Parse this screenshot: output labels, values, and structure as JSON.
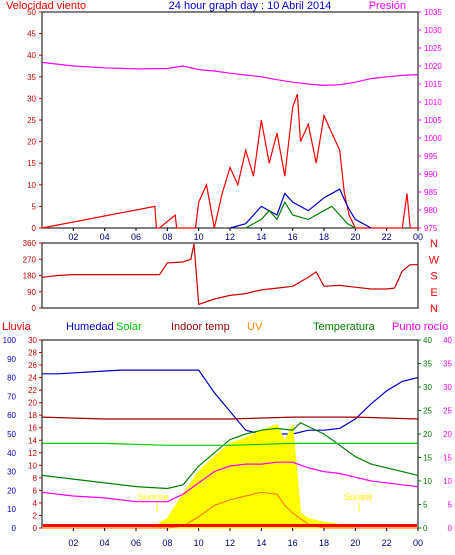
{
  "header": {
    "left_label": "Velocidad viento",
    "title": "24 hour graph day : 10 Abril 2014",
    "right_label": "Presión"
  },
  "time_ticks": [
    "02",
    "04",
    "06",
    "08",
    "10",
    "12",
    "14",
    "16",
    "18",
    "20",
    "22",
    "00"
  ],
  "wind_panel": {
    "left_ticks": [
      "0",
      "5",
      "10",
      "15",
      "20",
      "25",
      "30",
      "35",
      "40",
      "45",
      "50"
    ],
    "right_ticks": [
      "975",
      "980",
      "985",
      "990",
      "995",
      "1000",
      "1005",
      "1010",
      "1015",
      "1020",
      "1025",
      "1030",
      "1035"
    ]
  },
  "dir_panel": {
    "left_ticks": [
      "0",
      "90",
      "180",
      "270",
      "360"
    ],
    "right_letters": [
      "N",
      "W",
      "S",
      "E",
      "N"
    ]
  },
  "bottom_panel": {
    "labels": {
      "lluvia": "Lluvia",
      "humedad": "Humedad",
      "solar": "Solar",
      "indoor": "Indoor temp",
      "uv": "UV",
      "temperatura": "Temperatura",
      "punto": "Punto rocío"
    },
    "humidity_ticks": [
      "0",
      "10",
      "20",
      "30",
      "40",
      "50",
      "60",
      "70",
      "80",
      "90",
      "100"
    ],
    "rain_ticks": [
      "0",
      "2",
      "4",
      "6",
      "8",
      "10",
      "12",
      "14",
      "16",
      "18",
      "20",
      "22",
      "24",
      "26",
      "28",
      "30"
    ],
    "temp_ticks_a": [
      "0",
      "5",
      "10",
      "15",
      "20",
      "25",
      "30",
      "35",
      "40"
    ],
    "temp_ticks_b": [
      "0",
      "5",
      "10",
      "15",
      "20",
      "25",
      "30",
      "35",
      "40"
    ],
    "sunrise_label": "Sunrise",
    "sunset_label": "Sunset"
  },
  "chart_data": [
    {
      "type": "line",
      "title": "24 hour graph day : 10 Abril 2014",
      "ylabel": "Velocidad viento",
      "y2label": "Presión",
      "ylim": [
        0,
        50
      ],
      "y2lim": [
        975,
        1035
      ],
      "series": [
        {
          "name": "Velocidad viento",
          "color": "#ff0000",
          "x": [
            0,
            7.2,
            7.3,
            7.5,
            8.5,
            8.6,
            9.8,
            10,
            10.5,
            11,
            11.5,
            12,
            12.5,
            13,
            13.5,
            14,
            14.5,
            15,
            15.5,
            16,
            16.3,
            16.5,
            17,
            17.5,
            18,
            18.5,
            19,
            19.3,
            19.6,
            20,
            21,
            22,
            23,
            23.3,
            23.5,
            24
          ],
          "y": [
            0,
            5,
            0,
            0,
            3,
            0,
            0,
            6,
            10,
            0,
            8,
            14,
            10,
            18,
            12,
            25,
            15,
            22,
            12,
            28,
            31,
            20,
            24,
            15,
            26,
            22,
            18,
            8,
            3,
            0,
            0,
            0,
            0,
            8,
            0,
            0
          ]
        },
        {
          "name": "Presión",
          "color": "#ff00ff",
          "x": [
            0,
            2,
            4,
            6,
            8,
            9,
            10,
            11,
            12,
            13,
            14,
            15,
            16,
            17,
            18,
            19,
            20,
            21,
            22,
            23,
            24
          ],
          "y": [
            1021,
            1020,
            1019.5,
            1019.2,
            1019.3,
            1020,
            1019,
            1018.6,
            1018,
            1017.5,
            1017,
            1016.2,
            1015.5,
            1015,
            1014.6,
            1014.8,
            1015.5,
            1016.5,
            1017,
            1017.4,
            1017.6
          ]
        },
        {
          "color": "#0000cc",
          "x": [
            12,
            13,
            14,
            15,
            15.5,
            16,
            17,
            18,
            19,
            19.5,
            20,
            21
          ],
          "y": [
            0,
            1,
            5,
            3,
            8,
            6,
            4,
            7,
            9,
            5,
            2,
            0
          ]
        },
        {
          "color": "#008000",
          "x": [
            13,
            14,
            14.5,
            15,
            15.5,
            16,
            17,
            18,
            18.5,
            19,
            19.5,
            20
          ],
          "y": [
            0,
            2,
            4,
            2,
            6,
            3,
            2,
            4,
            5,
            3,
            1,
            0
          ]
        }
      ]
    },
    {
      "type": "line",
      "ylim": [
        0,
        360
      ],
      "series": [
        {
          "color": "#cc0000",
          "x": [
            0,
            1,
            2,
            4,
            6,
            7.5,
            8,
            9,
            9.5,
            9.7,
            10,
            11,
            12,
            13,
            14,
            15,
            16,
            17,
            17.5,
            18,
            19,
            20,
            21,
            22,
            22.5,
            23,
            23.5,
            24
          ],
          "y": [
            170,
            180,
            185,
            185,
            185,
            185,
            250,
            255,
            270,
            355,
            20,
            50,
            70,
            80,
            100,
            110,
            120,
            170,
            200,
            120,
            125,
            115,
            105,
            105,
            110,
            205,
            240,
            240
          ]
        }
      ]
    },
    {
      "type": "line",
      "ylim": [
        0,
        100
      ],
      "series": [
        {
          "name": "Humedad",
          "color": "#0000cc",
          "x": [
            0,
            1,
            3,
            5,
            7,
            9,
            10,
            11,
            12,
            13,
            14,
            15,
            16,
            17,
            18,
            19,
            20,
            21,
            22,
            23,
            24
          ],
          "y": [
            82,
            82,
            83,
            84,
            84,
            84,
            84,
            72,
            62,
            52,
            50,
            50,
            50,
            52,
            52,
            53,
            58,
            66,
            73,
            78,
            80
          ]
        },
        {
          "name": "Solar",
          "color": "#ffff00",
          "x": [
            0,
            7,
            8,
            9,
            10,
            11,
            12,
            13,
            14,
            15,
            15.5,
            16,
            16.5,
            17,
            18,
            19,
            20,
            21,
            22,
            23,
            24
          ],
          "y": [
            0,
            0,
            5,
            18,
            30,
            38,
            45,
            48,
            52,
            55,
            46,
            55,
            8,
            5,
            3,
            2,
            0,
            0,
            0,
            0,
            0
          ]
        },
        {
          "name": "Indoor temp",
          "color": "#990000",
          "x": [
            0,
            4,
            8,
            12,
            16,
            20,
            24
          ],
          "y": [
            59,
            58,
            58,
            58,
            59,
            59,
            58
          ]
        },
        {
          "name": "UV",
          "color": "#ff8000",
          "x": [
            0,
            8,
            9,
            10,
            11,
            12,
            13,
            14,
            15,
            15.5,
            16,
            16.5,
            17,
            18,
            24
          ],
          "y": [
            0,
            0,
            1,
            6,
            12,
            15,
            17,
            19,
            18,
            12,
            8,
            5,
            2,
            0,
            0
          ]
        },
        {
          "name": "Temperatura",
          "color": "#008000",
          "x": [
            0,
            2,
            4,
            6,
            8,
            9,
            10,
            11,
            12,
            13,
            14,
            15,
            16,
            16.5,
            17,
            18,
            19,
            20,
            21,
            22,
            23,
            24
          ],
          "y": [
            28,
            26,
            24,
            22,
            21,
            23,
            33,
            40,
            47,
            50,
            52,
            53,
            52,
            56,
            54,
            50,
            44,
            38,
            34,
            32,
            30,
            28
          ]
        },
        {
          "name": "Punto rocío",
          "color": "#ff00ff",
          "x": [
            0,
            2,
            4,
            6,
            8,
            9,
            10,
            11,
            12,
            13,
            14,
            15,
            16,
            17,
            18,
            19,
            20,
            21,
            22,
            23,
            24
          ],
          "y": [
            19,
            17,
            16,
            14,
            14,
            18,
            24,
            30,
            33,
            34,
            34,
            35,
            35,
            32,
            30,
            29,
            27,
            25,
            24,
            23,
            22
          ]
        },
        {
          "color": "#00cc00",
          "x": [
            0,
            4,
            8,
            12,
            16,
            20,
            24
          ],
          "y": [
            45,
            45,
            44,
            44,
            45,
            45,
            45
          ]
        }
      ]
    }
  ]
}
